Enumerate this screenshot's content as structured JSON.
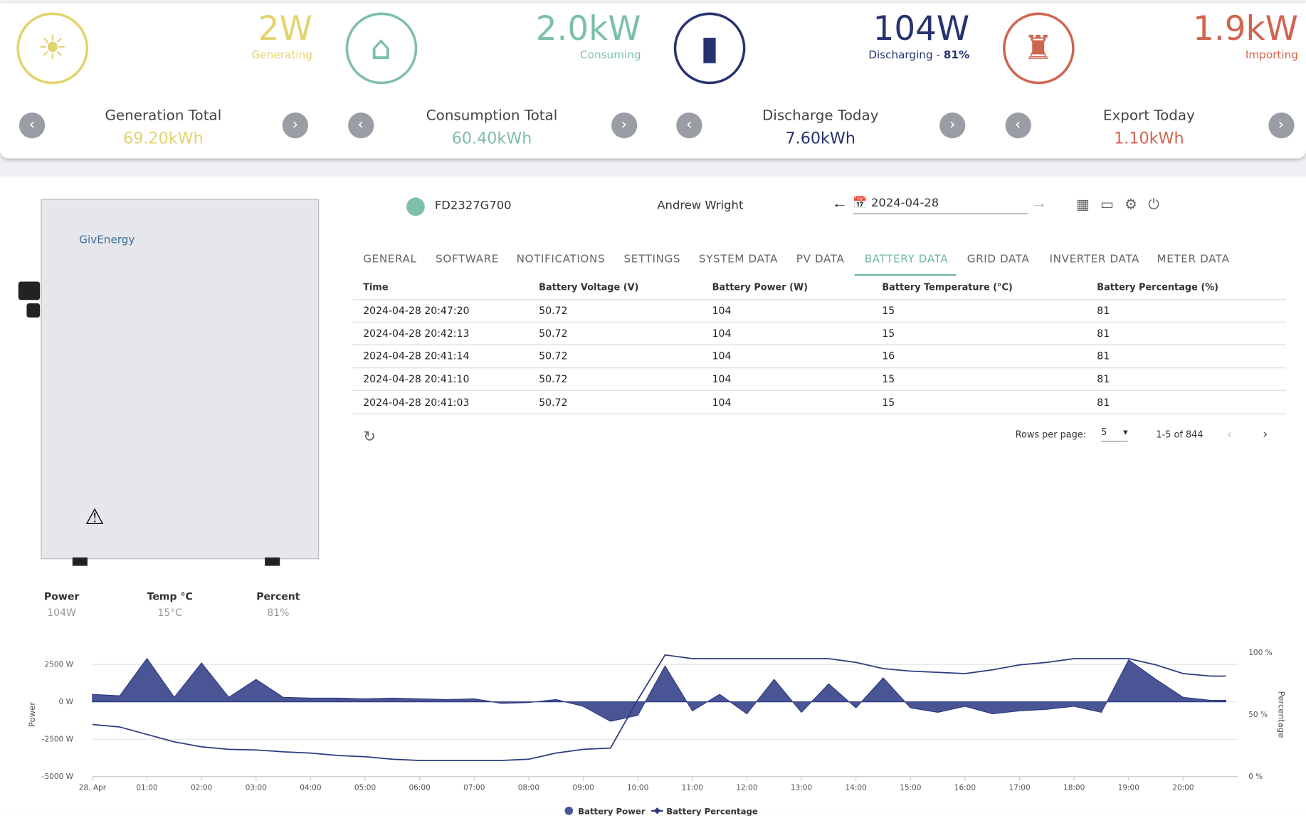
{
  "cards": [
    {
      "value": "2W",
      "label": "Generating",
      "color": "#e3d36f",
      "total_label": "Generation Total",
      "total": "69.20kWh"
    },
    {
      "value": "2.0kW",
      "label": "Consuming",
      "color": "#7dbfa9",
      "total_label": "Consumption Total",
      "total": "60.40kWh"
    },
    {
      "value": "104W",
      "label": "Discharging - ",
      "label_strong": "81%",
      "color": "#27336f",
      "total_label": "Discharge Today",
      "total": "7.60kWh"
    },
    {
      "value": "1.9kW",
      "label": "Importing",
      "color": "#d0654f",
      "total_label": "Export Today",
      "total": "1.10kWh"
    }
  ],
  "device": {
    "logo": "GivEnergy",
    "serial": "FD2327G700",
    "owner": "Andrew Wright",
    "date": "2024-04-28"
  },
  "tabs": {
    "items": [
      "GENERAL",
      "SOFTWARE",
      "NOTIFICATIONS",
      "SETTINGS",
      "SYSTEM DATA",
      "PV DATA",
      "BATTERY DATA",
      "GRID DATA",
      "INVERTER DATA",
      "METER DATA"
    ],
    "active": 6
  },
  "table": {
    "headers": [
      "Time",
      "Battery Voltage (V)",
      "Battery Power (W)",
      "Battery Temperature (°C)",
      "Battery Percentage (%)"
    ],
    "rows": [
      [
        "2024-04-28 20:47:20",
        50.72,
        104,
        15,
        81
      ],
      [
        "2024-04-28 20:42:13",
        50.72,
        104,
        15,
        81
      ],
      [
        "2024-04-28 20:41:14",
        50.72,
        104,
        16,
        81
      ],
      [
        "2024-04-28 20:41:10",
        50.72,
        104,
        15,
        81
      ],
      [
        "2024-04-28 20:41:03",
        50.72,
        104,
        15,
        81
      ]
    ]
  },
  "pagination": {
    "rows_label": "Rows per page:",
    "rows": 5,
    "range": "1-5 of 844"
  },
  "stats": [
    {
      "label": "Power",
      "value": "104W"
    },
    {
      "label": "Temp °C",
      "value": "15°C"
    },
    {
      "label": "Percent",
      "value": "81%"
    }
  ],
  "chart_data": {
    "type": "area-line",
    "y_title": "Power",
    "y2_title": "Percentage",
    "x": [
      "00:00",
      "00:30",
      "01:00",
      "01:30",
      "02:00",
      "02:30",
      "03:00",
      "03:30",
      "04:00",
      "04:30",
      "05:00",
      "05:30",
      "06:00",
      "06:30",
      "07:00",
      "07:30",
      "08:00",
      "08:30",
      "09:00",
      "09:30",
      "10:00",
      "10:30",
      "11:00",
      "11:30",
      "12:00",
      "12:30",
      "13:00",
      "13:30",
      "14:00",
      "14:30",
      "15:00",
      "15:30",
      "16:00",
      "16:30",
      "17:00",
      "17:30",
      "18:00",
      "18:30",
      "19:00",
      "19:30",
      "20:00",
      "20:30",
      "20:47"
    ],
    "xlim": [
      "00:00",
      "21:00"
    ],
    "xticks": [
      {
        "value": "00:00",
        "label": "28. Apr"
      },
      "01:00",
      "02:00",
      "03:00",
      "04:00",
      "05:00",
      "06:00",
      "07:00",
      "08:00",
      "09:00",
      "10:00",
      "11:00",
      "12:00",
      "13:00",
      "14:00",
      "15:00",
      "16:00",
      "17:00",
      "18:00",
      "19:00",
      "20:00"
    ],
    "ylim": [
      -5000,
      3300
    ],
    "yticks": [
      {
        "value": -5000,
        "label": "-5000 W"
      },
      {
        "value": -2500,
        "label": "-2500 W"
      },
      {
        "value": 0,
        "label": "0 W"
      },
      {
        "value": 2500,
        "label": "2500 W"
      }
    ],
    "y2lim": [
      0,
      100
    ],
    "y2ticks": [
      {
        "value": 0,
        "label": "0 %"
      },
      {
        "value": 50,
        "label": "50 %"
      },
      {
        "value": 100,
        "label": "100 %"
      }
    ],
    "grid": true,
    "series": [
      {
        "name": "Battery Power",
        "color": "#4a5596",
        "values": [
          500,
          400,
          2900,
          300,
          2600,
          300,
          1500,
          300,
          250,
          250,
          200,
          250,
          200,
          150,
          200,
          -100,
          -50,
          150,
          -300,
          -1300,
          -900,
          2400,
          -600,
          500,
          -800,
          1500,
          -700,
          1200,
          -400,
          1600,
          -400,
          -700,
          -300,
          -800,
          -600,
          -500,
          -300,
          -700,
          2800,
          1500,
          300,
          100,
          100
        ]
      },
      {
        "name": "Battery Percentage",
        "color": "#2d3a80",
        "axis": "y2",
        "values": [
          42,
          40,
          34,
          28,
          24,
          22,
          21.5,
          20,
          19,
          17,
          16,
          14,
          13,
          13,
          13,
          13,
          14,
          19,
          22,
          23,
          62,
          98,
          95,
          95,
          95,
          95,
          95,
          95,
          92,
          87,
          85,
          84,
          83,
          86,
          90,
          92,
          95,
          95,
          95,
          90,
          83,
          81,
          81
        ]
      }
    ]
  }
}
